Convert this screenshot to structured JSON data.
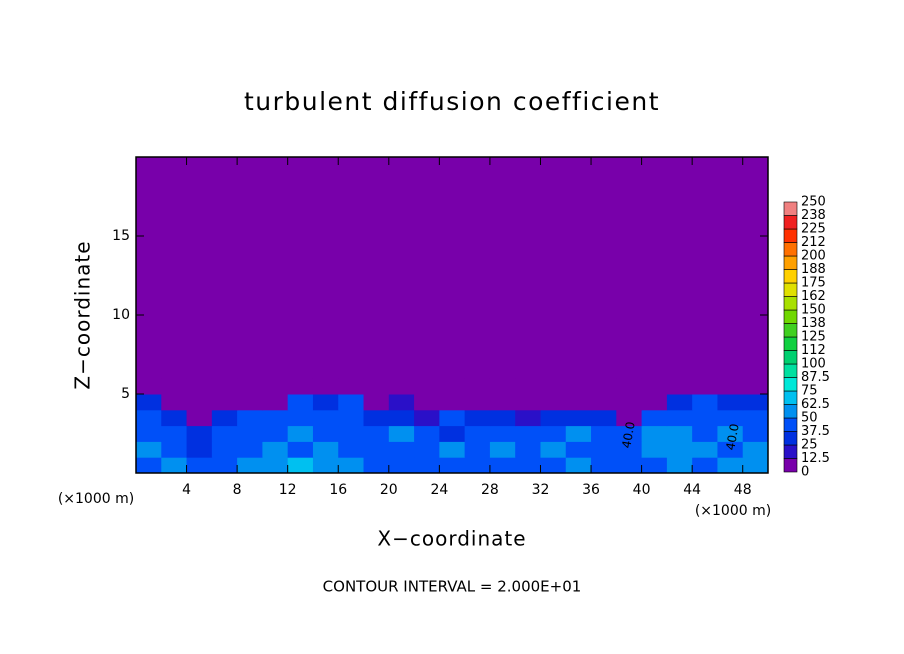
{
  "chart_data": {
    "type": "contour",
    "title": "turbulent diffusion coefficient",
    "x_label": "X−coordinate",
    "y_label": "Z−coordinate",
    "x_unit_label": "(×1000 m)",
    "y_unit_label": "(×1000 m)",
    "annotation": "CONTOUR INTERVAL = 2.000E+01",
    "xlim": [
      0,
      50
    ],
    "ylim": [
      0,
      20
    ],
    "xticks": [
      4,
      8,
      12,
      16,
      20,
      24,
      28,
      32,
      36,
      40,
      44,
      48
    ],
    "yticks": [
      5,
      10,
      15
    ],
    "levels": [
      0,
      12.5,
      25,
      37.5,
      50,
      62.5,
      75,
      87.5,
      100,
      112,
      125,
      138,
      150,
      162,
      175,
      188,
      200,
      212,
      225,
      238,
      250
    ],
    "level_colors": [
      "#7800aa",
      "#2a10c8",
      "#0030e0",
      "#0050f8",
      "#0090f0",
      "#00c0f0",
      "#00e8d8",
      "#00e0a0",
      "#00d070",
      "#10d040",
      "#40d020",
      "#70d800",
      "#a8e000",
      "#e0e000",
      "#ffd000",
      "#ffa000",
      "#ff7000",
      "#ff3000",
      "#f02020",
      "#f08080"
    ],
    "contour_labels": [
      "40.0",
      "40.0"
    ],
    "field": {
      "x": [
        1,
        3,
        5,
        7,
        9,
        11,
        13,
        15,
        17,
        19,
        21,
        23,
        25,
        27,
        29,
        31,
        33,
        35,
        37,
        39,
        41,
        43,
        45,
        47,
        49
      ],
      "z": [
        0.5,
        1.5,
        2.5,
        3.5,
        4.5,
        5.5
      ],
      "values": [
        [
          45,
          50,
          40,
          45,
          55,
          60,
          65,
          55,
          50,
          40,
          45,
          40,
          45,
          40,
          45,
          45,
          40,
          50,
          45,
          40,
          45,
          50,
          45,
          50,
          55
        ],
        [
          50,
          45,
          30,
          40,
          45,
          50,
          45,
          50,
          45,
          40,
          40,
          45,
          50,
          45,
          50,
          45,
          55,
          45,
          40,
          45,
          50,
          55,
          50,
          45,
          50
        ],
        [
          45,
          40,
          35,
          40,
          45,
          40,
          50,
          45,
          40,
          45,
          50,
          40,
          35,
          45,
          40,
          40,
          45,
          50,
          45,
          40,
          50,
          55,
          45,
          50,
          45
        ],
        [
          40,
          35,
          5,
          35,
          40,
          45,
          45,
          40,
          45,
          30,
          35,
          20,
          40,
          35,
          30,
          20,
          35,
          30,
          35,
          5,
          40,
          45,
          40,
          45,
          40
        ],
        [
          35,
          5,
          0,
          5,
          5,
          10,
          40,
          35,
          40,
          5,
          15,
          5,
          10,
          10,
          5,
          5,
          5,
          0,
          0,
          0,
          5,
          35,
          40,
          35,
          35
        ],
        [
          0,
          0,
          0,
          0,
          0,
          0,
          5,
          10,
          5,
          0,
          0,
          0,
          0,
          0,
          0,
          0,
          0,
          0,
          0,
          0,
          0,
          0,
          10,
          0,
          0
        ]
      ]
    }
  }
}
